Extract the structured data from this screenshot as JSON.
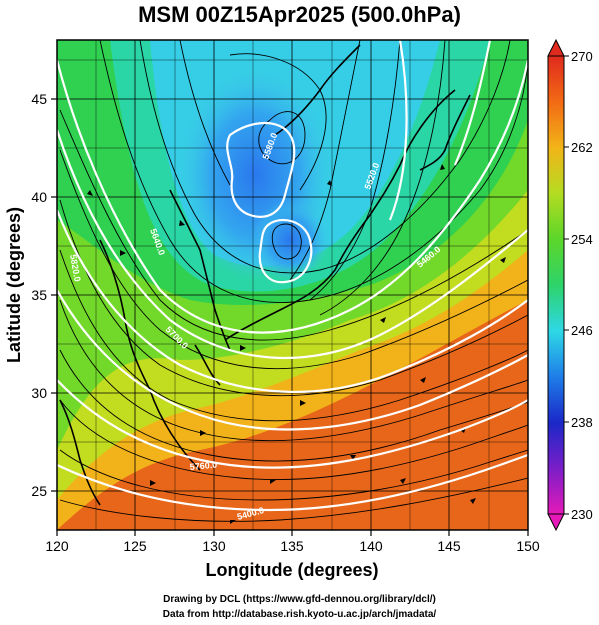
{
  "title": "MSM 00Z15Apr2025 (500.0hPa)",
  "map": {
    "lon_range": [
      120,
      150
    ],
    "lat_range": [
      22.5,
      47.5
    ],
    "xlabel": "Longitude (degrees)",
    "ylabel": "Latitude  (degrees)",
    "xticks": [
      "120",
      "125",
      "130",
      "135",
      "140",
      "145",
      "150"
    ],
    "yticks": [
      "25",
      "30",
      "35",
      "40",
      "45"
    ],
    "grid": true
  },
  "colorbar": {
    "min": 230,
    "max": 270,
    "ticks": [
      "230",
      "238",
      "246",
      "254",
      "262",
      "270"
    ],
    "colors": [
      "#e51ab8",
      "#7a1ec8",
      "#1a28c8",
      "#1f7ee8",
      "#2ed8e6",
      "#2ed36a",
      "#5cd62a",
      "#b4dc22",
      "#f2b418",
      "#f26a14",
      "#e02a1e"
    ]
  },
  "contours": {
    "labels": [
      "5400.0",
      "5460.0",
      "5520.0",
      "5580.0",
      "5640.0",
      "5700.0",
      "5760.0",
      "5820.0"
    ]
  },
  "credits": {
    "line1": "Drawing by DCL (https://www.gfd-dennou.org/library/dcl/)",
    "line2": "Data from http://database.rish.kyoto-u.ac.jp/arch/jmadata/"
  }
}
